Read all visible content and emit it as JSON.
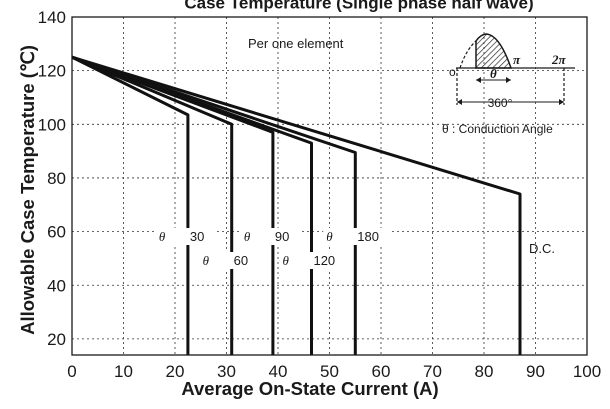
{
  "chart_data": {
    "type": "line",
    "title": "Case Temperature (Single phase half wave)",
    "xlabel": "Average On-State Current (A)",
    "ylabel": "Allowable Case Temperature (℃)",
    "xlim": [
      0,
      100
    ],
    "ylim": [
      14,
      140
    ],
    "x_ticks": [
      "0",
      "10",
      "20",
      "30",
      "40",
      "50",
      "60",
      "70",
      "80",
      "90",
      "100"
    ],
    "y_ticks": [
      "20",
      "40",
      "60",
      "80",
      "100",
      "120",
      "140"
    ],
    "grid": true,
    "note": "Per one element",
    "series": [
      {
        "theta": "θ",
        "value": "30",
        "points": [
          [
            0,
            125
          ],
          [
            22.5,
            103.5
          ],
          [
            22.5,
            14
          ]
        ]
      },
      {
        "theta": "θ",
        "value": "60",
        "points": [
          [
            0,
            125
          ],
          [
            31,
            100
          ],
          [
            31,
            14
          ]
        ]
      },
      {
        "theta": "θ",
        "value": "90",
        "points": [
          [
            0,
            125
          ],
          [
            39,
            97
          ],
          [
            39,
            14
          ]
        ]
      },
      {
        "theta": "θ",
        "value": "120",
        "points": [
          [
            0,
            125
          ],
          [
            46.5,
            93
          ],
          [
            46.5,
            14
          ]
        ]
      },
      {
        "theta": "θ",
        "value": "180",
        "points": [
          [
            0,
            125
          ],
          [
            55,
            89.5
          ],
          [
            55,
            14
          ]
        ]
      },
      {
        "name": "D.C.",
        "points": [
          [
            0,
            125
          ],
          [
            87,
            74
          ],
          [
            87,
            14
          ]
        ]
      }
    ],
    "inset": {
      "pi_label": "π",
      "two_pi_label": "2π",
      "origin_label": "o",
      "theta_symbol": "θ",
      "degrees_label": "360°",
      "legend": "θ : Conduction Angle"
    }
  }
}
